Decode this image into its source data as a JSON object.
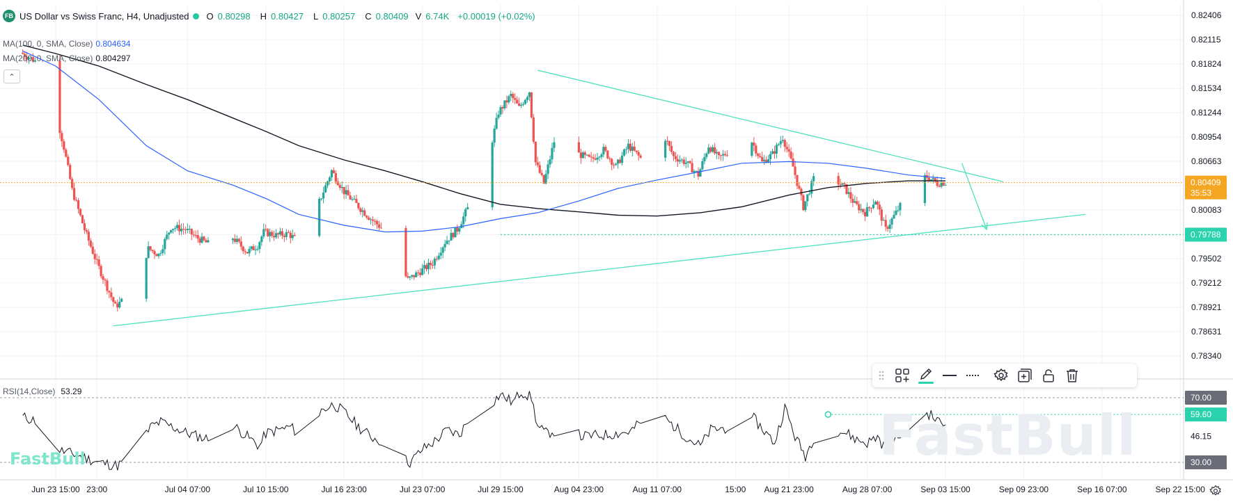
{
  "header": {
    "badge": "FB",
    "title": "US Dollar vs Swiss Franc, H4, Unadjusted",
    "open_label": "O",
    "open": "0.80298",
    "high_label": "H",
    "high": "0.80427",
    "low_label": "L",
    "low": "0.80257",
    "close_label": "C",
    "close": "0.80409",
    "volume_label": "V",
    "volume": "6.74K",
    "change": "+0.00019 (+0.02%)"
  },
  "indicators": {
    "ma100_label": "MA(100, 0, SMA, Close)",
    "ma100_value": "0.804634",
    "ma200_label": "MA(200, 0, SMA, Close)",
    "ma200_value": "0.804297",
    "rsi_label": "RSI(14,Close)",
    "rsi_value": "53.29"
  },
  "colors": {
    "up": "#26a69a",
    "down": "#ef5350",
    "ma100": "#2962ff",
    "ma200": "#131722",
    "trendline": "#4fe0bd",
    "price_tag": "#f5a623",
    "support_tag": "#2ad3ad",
    "rsi": "#131722"
  },
  "chart_data": {
    "type": "candlestick",
    "symbol": "US Dollar vs Swiss Franc",
    "timeframe": "H4",
    "y_ticks": [
      "0.82406",
      "0.82115",
      "0.81824",
      "0.81534",
      "0.81244",
      "0.80954",
      "0.80663",
      "0.80373",
      "0.80083",
      "0.79788",
      "0.79502",
      "0.79212",
      "0.78921",
      "0.78631",
      "0.78340"
    ],
    "ylim": [
      0.7826,
      0.8246
    ],
    "x_ticks": [
      "Jun 23 15:00",
      "23:00",
      "Jul 04 07:00",
      "Jul 10 15:00",
      "Jul 16 23:00",
      "Jul 23 07:00",
      "Jul 29 15:00",
      "Aug 04 23:00",
      "Aug 11 07:00",
      "15:00",
      "Aug 21 23:00",
      "Aug 28 07:00",
      "Sep 03 15:00",
      "Sep 09 23:00",
      "Sep 16 07:00",
      "Sep 22 15:00"
    ],
    "current_price": "0.80409",
    "countdown": "35:53",
    "support_level": "0.79788",
    "price_anchors": [
      [
        "Jun 20 23:00",
        0.8196
      ],
      [
        "Jun 23 03:00",
        0.8178
      ],
      [
        "Jun 23 15:00",
        0.8136
      ],
      [
        "Jun 24 11:00",
        0.8083
      ],
      [
        "Jun 25 03:00",
        0.8032
      ],
      [
        "Jun 26 03:00",
        0.7985
      ],
      [
        "Jun 27 03:00",
        0.7945
      ],
      [
        "Jun 28 15:00",
        0.7893
      ],
      [
        "Jun 30 03:00",
        0.7912
      ],
      [
        "Jul 01 07:00",
        0.7962
      ],
      [
        "Jul 02 03:00",
        0.7955
      ],
      [
        "Jul 03 03:00",
        0.7988
      ],
      [
        "Jul 04 07:00",
        0.7985
      ],
      [
        "Jul 05 03:00",
        0.7976
      ],
      [
        "Jul 06 03:00",
        0.7968
      ],
      [
        "Jul 07 03:00",
        0.7992
      ],
      [
        "Jul 08 03:00",
        0.7975
      ],
      [
        "Jul 09 07:00",
        0.7958
      ],
      [
        "Jul 10 03:00",
        0.7966
      ],
      [
        "Jul 10 15:00",
        0.7982
      ],
      [
        "Jul 11 15:00",
        0.7978
      ],
      [
        "Jul 12 15:00",
        0.798
      ],
      [
        "Jul 13 19:00",
        0.7966
      ],
      [
        "Jul 14 23:00",
        0.8012
      ],
      [
        "Jul 16 03:00",
        0.8055
      ],
      [
        "Jul 17 03:00",
        0.803
      ],
      [
        "Jul 18 03:00",
        0.8015
      ],
      [
        "Jul 19 03:00",
        0.8
      ],
      [
        "Jul 20 07:00",
        0.7985
      ],
      [
        "Jul 21 07:00",
        0.795
      ],
      [
        "Jul 22 07:00",
        0.7925
      ],
      [
        "Jul 23 07:00",
        0.7935
      ],
      [
        "Jul 24 07:00",
        0.7945
      ],
      [
        "Jul 25 07:00",
        0.797
      ],
      [
        "Jul 26 07:00",
        0.7985
      ],
      [
        "Jul 27 03:00",
        0.801
      ],
      [
        "Jul 27 23:00",
        0.804
      ],
      [
        "Jul 28 19:00",
        0.807
      ],
      [
        "Jul 29 15:00",
        0.8125
      ],
      [
        "Jul 30 15:00",
        0.8145
      ],
      [
        "Jul 31 07:00",
        0.813
      ],
      [
        "Aug 01 03:00",
        0.815
      ],
      [
        "Aug 01 15:00",
        0.8065
      ],
      [
        "Aug 02 07:00",
        0.804
      ],
      [
        "Aug 03 03:00",
        0.809
      ],
      [
        "Aug 04 03:00",
        0.8098
      ],
      [
        "Aug 05 03:00",
        0.8075
      ],
      [
        "Aug 06 03:00",
        0.8068
      ],
      [
        "Aug 07 03:00",
        0.808
      ],
      [
        "Aug 08 03:00",
        0.806
      ],
      [
        "Aug 09 03:00",
        0.8085
      ],
      [
        "Aug 10 03:00",
        0.807
      ],
      [
        "Aug 10 23:00",
        0.8115
      ],
      [
        "Aug 11 19:00",
        0.8105
      ],
      [
        "Aug 12 19:00",
        0.8072
      ],
      [
        "Aug 13 19:00",
        0.8065
      ],
      [
        "Aug 14 19:00",
        0.805
      ],
      [
        "Aug 15 15:00",
        0.8085
      ],
      [
        "Aug 16 11:00",
        0.807
      ],
      [
        "Aug 17 11:00",
        0.808
      ],
      [
        "Aug 18 07:00",
        0.8075
      ],
      [
        "Aug 19 03:00",
        0.809
      ],
      [
        "Aug 19 23:00",
        0.8065
      ],
      [
        "Aug 20 19:00",
        0.8075
      ],
      [
        "Aug 21 15:00",
        0.8095
      ],
      [
        "Aug 22 11:00",
        0.806
      ],
      [
        "Aug 23 07:00",
        0.8012
      ],
      [
        "Aug 24 03:00",
        0.8045
      ],
      [
        "Aug 24 23:00",
        0.8055
      ],
      [
        "Aug 25 19:00",
        0.8045
      ],
      [
        "Aug 26 15:00",
        0.8035
      ],
      [
        "Aug 27 11:00",
        0.8015
      ],
      [
        "Aug 28 07:00",
        0.8005
      ],
      [
        "Aug 29 03:00",
        0.802
      ],
      [
        "Aug 29 23:00",
        0.7985
      ],
      [
        "Aug 30 19:00",
        0.8005
      ],
      [
        "Aug 31 15:00",
        0.8025
      ],
      [
        "Sep 01 11:00",
        0.8045
      ],
      [
        "Sep 02 07:00",
        0.8048
      ],
      [
        "Sep 03 03:00",
        0.804
      ],
      [
        "Sep 03 15:00",
        0.8041
      ]
    ],
    "ma100_anchors": [
      [
        "Jun 20 23:00",
        0.8198
      ],
      [
        "Jun 23 15:00",
        0.818
      ],
      [
        "Jun 27 03:00",
        0.814
      ],
      [
        "Jun 30 23:00",
        0.8085
      ],
      [
        "Jul 04 07:00",
        0.8055
      ],
      [
        "Jul 07 23:00",
        0.8038
      ],
      [
        "Jul 10 15:00",
        0.8022
      ],
      [
        "Jul 13 07:00",
        0.8003
      ],
      [
        "Jul 16 23:00",
        0.799
      ],
      [
        "Jul 20 07:00",
        0.7982
      ],
      [
        "Jul 23 07:00",
        0.7983
      ],
      [
        "Jul 26 07:00",
        0.7988
      ],
      [
        "Jul 29 15:00",
        0.7998
      ],
      [
        "Aug 01 15:00",
        0.8005
      ],
      [
        "Aug 04 23:00",
        0.8019
      ],
      [
        "Aug 08 03:00",
        0.8034
      ],
      [
        "Aug 11 07:00",
        0.8044
      ],
      [
        "Aug 14 19:00",
        0.8054
      ],
      [
        "Aug 18 03:00",
        0.8064
      ],
      [
        "Aug 21 23:00",
        0.8066
      ],
      [
        "Aug 25 03:00",
        0.8064
      ],
      [
        "Aug 28 07:00",
        0.8058
      ],
      [
        "Aug 31 15:00",
        0.805
      ],
      [
        "Sep 03 15:00",
        0.8046
      ]
    ],
    "ma200_anchors": [
      [
        "Jun 20 23:00",
        0.8205
      ],
      [
        "Jun 23 15:00",
        0.8195
      ],
      [
        "Jun 27 03:00",
        0.818
      ],
      [
        "Jun 30 23:00",
        0.8158
      ],
      [
        "Jul 04 07:00",
        0.814
      ],
      [
        "Jul 07 23:00",
        0.8118
      ],
      [
        "Jul 10 15:00",
        0.8102
      ],
      [
        "Jul 13 07:00",
        0.8085
      ],
      [
        "Jul 16 23:00",
        0.8068
      ],
      [
        "Jul 20 07:00",
        0.8055
      ],
      [
        "Jul 23 07:00",
        0.8042
      ],
      [
        "Jul 26 07:00",
        0.8028
      ],
      [
        "Jul 29 15:00",
        0.8015
      ],
      [
        "Aug 01 15:00",
        0.801
      ],
      [
        "Aug 04 23:00",
        0.8006
      ],
      [
        "Aug 08 03:00",
        0.8002
      ],
      [
        "Aug 11 07:00",
        0.8001
      ],
      [
        "Aug 14 19:00",
        0.8005
      ],
      [
        "Aug 18 03:00",
        0.8012
      ],
      [
        "Aug 21 23:00",
        0.8026
      ],
      [
        "Aug 25 03:00",
        0.8035
      ],
      [
        "Aug 28 07:00",
        0.804
      ],
      [
        "Aug 31 15:00",
        0.8043
      ],
      [
        "Sep 03 15:00",
        0.8043
      ]
    ],
    "trendlines": [
      {
        "name": "upper",
        "from": [
          "Aug 01 15:00",
          0.8175
        ],
        "to": [
          "Sep 08 07:00",
          0.8042
        ]
      },
      {
        "name": "lower",
        "from": [
          "Jun 28 07:00",
          0.787
        ],
        "to": [
          "Sep 14 23:00",
          0.8003
        ]
      }
    ],
    "projection_arrow": {
      "from": [
        "Sep 04 23:00",
        0.8064
      ],
      "to": [
        "Sep 06 23:00",
        0.7985
      ]
    },
    "rsi": {
      "ticks": [
        "70.00",
        "59.60",
        "46.15",
        "30.00"
      ],
      "ylim": [
        20,
        82
      ],
      "current": 53.29,
      "level_marker": 59.6,
      "anchors": [
        [
          "Jun 20 23:00",
          58
        ],
        [
          "Jun 22 11:00",
          55
        ],
        [
          "Jun 23 15:00",
          38
        ],
        [
          "Jun 25 03:00",
          35
        ],
        [
          "Jun 27 03:00",
          30
        ],
        [
          "Jun 28 15:00",
          28
        ],
        [
          "Jun 30 03:00",
          36
        ],
        [
          "Jul 01 07:00",
          52
        ],
        [
          "Jul 02 03:00",
          55
        ],
        [
          "Jul 04 07:00",
          48
        ],
        [
          "Jul 06 03:00",
          44
        ],
        [
          "Jul 07 03:00",
          60
        ],
        [
          "Jul 08 03:00",
          52
        ],
        [
          "Jul 10 03:00",
          40
        ],
        [
          "Jul 10 15:00",
          48
        ],
        [
          "Jul 12 15:00",
          52
        ],
        [
          "Jul 13 19:00",
          44
        ],
        [
          "Jul 15 03:00",
          62
        ],
        [
          "Jul 16 03:00",
          66
        ],
        [
          "Jul 17 03:00",
          60
        ],
        [
          "Jul 18 03:00",
          52
        ],
        [
          "Jul 19 03:00",
          46
        ],
        [
          "Jul 20 07:00",
          42
        ],
        [
          "Jul 21 07:00",
          34
        ],
        [
          "Jul 22 07:00",
          30
        ],
        [
          "Jul 23 07:00",
          38
        ],
        [
          "Jul 24 07:00",
          43
        ],
        [
          "Jul 25 07:00",
          50
        ],
        [
          "Jul 26 07:00",
          47
        ],
        [
          "Jul 27 03:00",
          58
        ],
        [
          "Jul 28 19:00",
          66
        ],
        [
          "Jul 29 15:00",
          72
        ],
        [
          "Jul 30 15:00",
          67
        ],
        [
          "Jul 31 07:00",
          74
        ],
        [
          "Aug 01 03:00",
          70
        ],
        [
          "Aug 01 15:00",
          52
        ],
        [
          "Aug 02 07:00",
          48
        ],
        [
          "Aug 04 03:00",
          52
        ],
        [
          "Aug 05 03:00",
          46
        ],
        [
          "Aug 07 03:00",
          47
        ],
        [
          "Aug 09 03:00",
          49
        ],
        [
          "Aug 10 23:00",
          62
        ],
        [
          "Aug 11 19:00",
          58
        ],
        [
          "Aug 13 19:00",
          45
        ],
        [
          "Aug 14 19:00",
          40
        ],
        [
          "Aug 15 15:00",
          50
        ],
        [
          "Aug 17 11:00",
          52
        ],
        [
          "Aug 18 07:00",
          44
        ],
        [
          "Aug 19 03:00",
          57
        ],
        [
          "Aug 20 19:00",
          42
        ],
        [
          "Aug 21 15:00",
          64
        ],
        [
          "Aug 22 11:00",
          46
        ],
        [
          "Aug 23 07:00",
          34
        ],
        [
          "Aug 24 03:00",
          48
        ],
        [
          "Aug 24 23:00",
          56
        ],
        [
          "Aug 25 19:00",
          50
        ],
        [
          "Aug 26 15:00",
          48
        ],
        [
          "Aug 27 11:00",
          44
        ],
        [
          "Aug 28 07:00",
          42
        ],
        [
          "Aug 29 03:00",
          46
        ],
        [
          "Aug 29 23:00",
          36
        ],
        [
          "Aug 30 19:00",
          46
        ],
        [
          "Aug 31 15:00",
          50
        ],
        [
          "Sep 01 11:00",
          58
        ],
        [
          "Sep 02 07:00",
          60
        ],
        [
          "Sep 03 03:00",
          55
        ],
        [
          "Sep 03 15:00",
          53.29
        ]
      ]
    }
  },
  "toolbar": {
    "icons": [
      "drag-handle-icon",
      "layout-plus-icon",
      "pencil-icon",
      "line-solid-icon",
      "line-dotted-icon",
      "gear-icon",
      "add-panel-icon",
      "lock-icon",
      "trash-icon"
    ]
  },
  "watermark": {
    "big": "FastBull",
    "small": "FastBull"
  }
}
